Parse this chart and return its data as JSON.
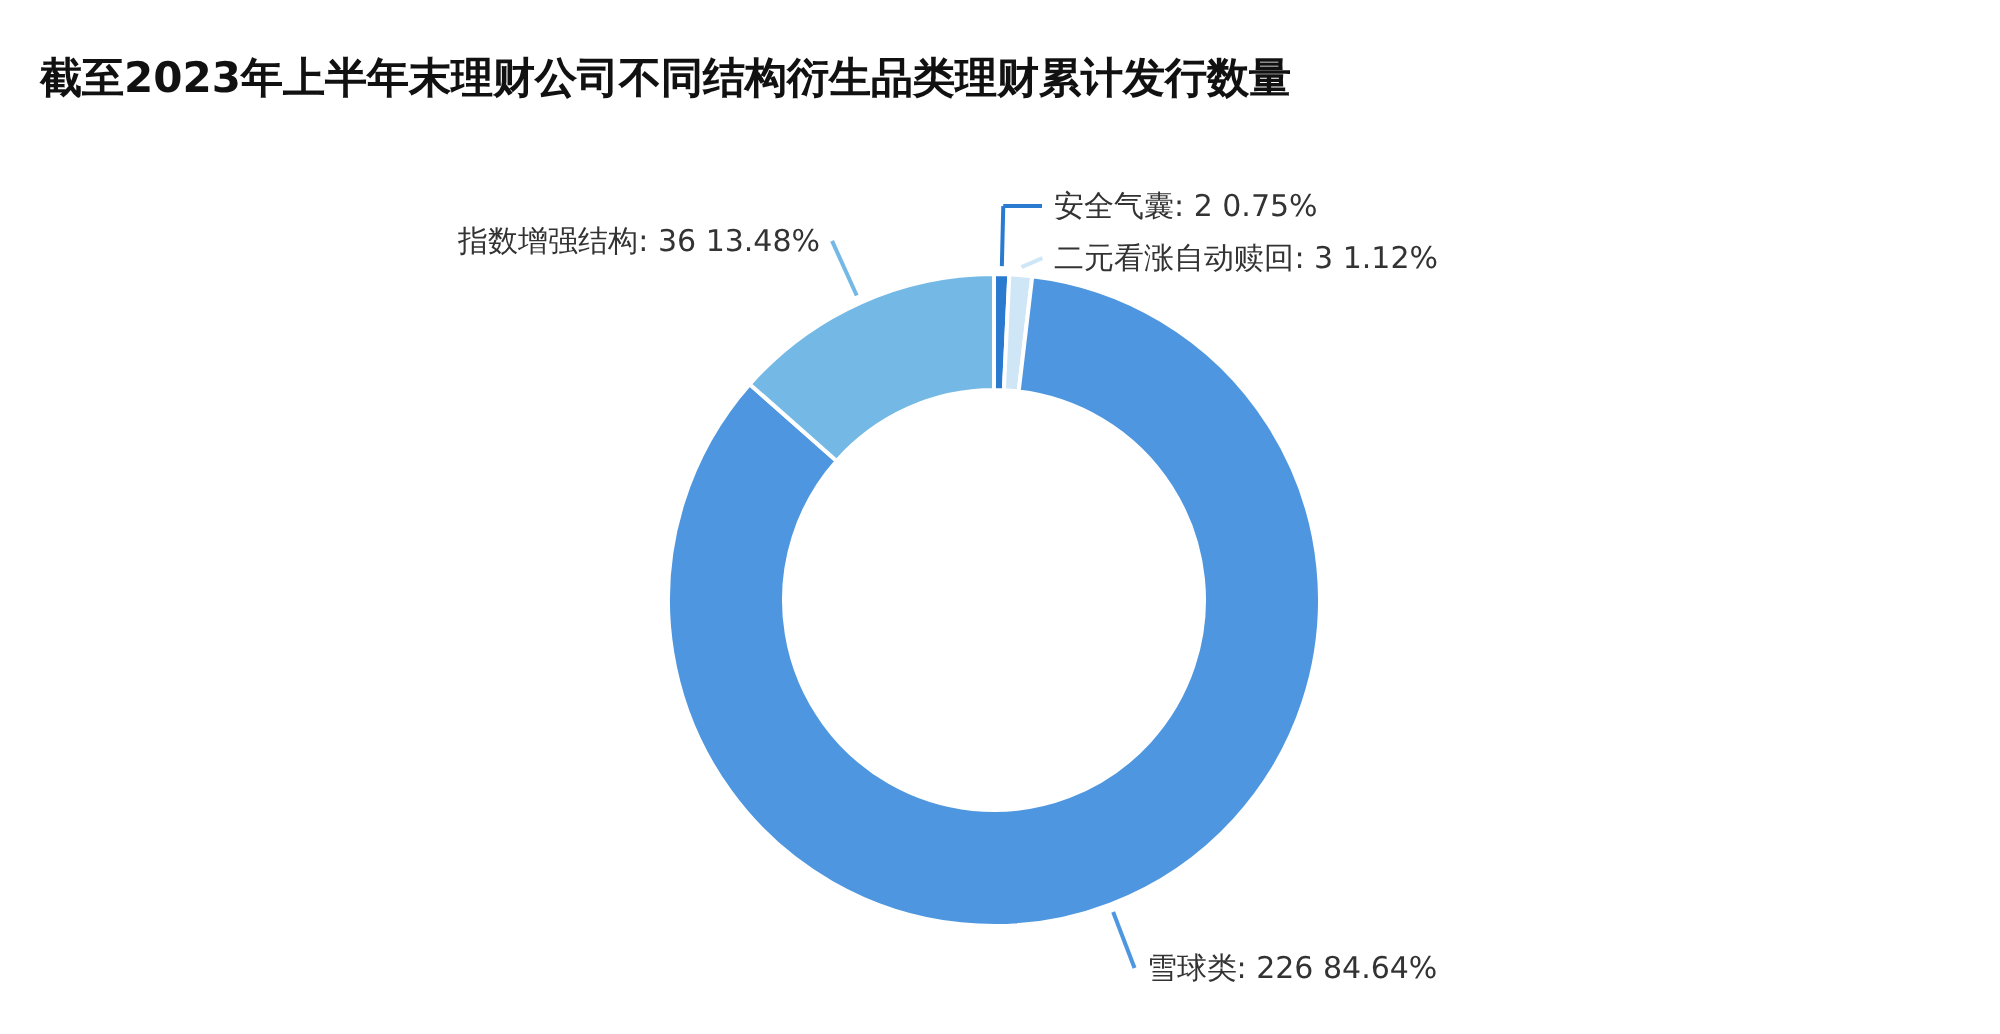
{
  "chart_data": {
    "type": "donut",
    "title": "截至2023年上半年末理财公司不同结构衍生品类理财累计发行数量",
    "categories": [
      "安全气囊",
      "二元看涨自动赎回",
      "雪球类",
      "指数增强结构"
    ],
    "values": [
      2,
      3,
      226,
      36
    ],
    "colors": [
      "#2a7bd0",
      "#cfe6f7",
      "#4e97e0",
      "#74b9e6"
    ],
    "value_labels": [
      "2   0.75%",
      "3   1.12%",
      "226   84.64%",
      "36   13.48%"
    ]
  }
}
